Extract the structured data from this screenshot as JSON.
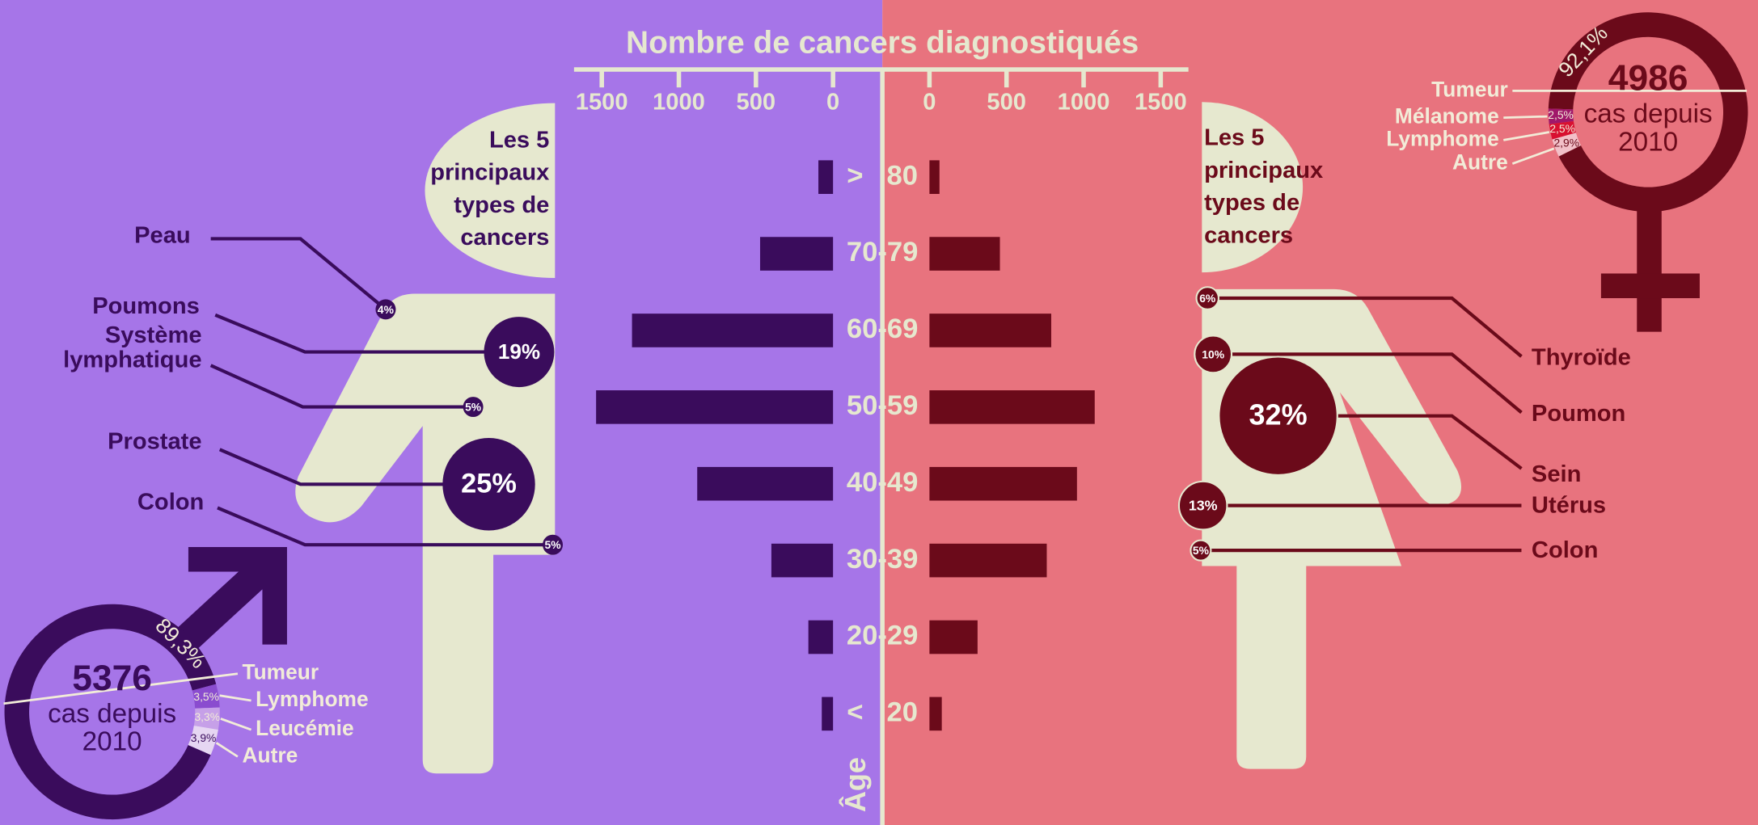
{
  "chart_data": [
    {
      "type": "butterfly",
      "title": "Nombre de cancers diagnostiqués",
      "y_label": "Âge",
      "categories": [
        "> 80",
        "70-79",
        "60-69",
        "50-59",
        "40-49",
        "30-39",
        "20-29",
        "< 20"
      ],
      "series": [
        {
          "color": "#3a0c5c",
          "values": [
            95,
            473,
            1304,
            1537,
            881,
            400,
            160,
            73
          ]
        },
        {
          "color": "#6b0a1a",
          "values": [
            65,
            457,
            790,
            1072,
            957,
            761,
            312,
            80
          ]
        }
      ],
      "xlim": [
        0,
        1680
      ],
      "xticks": [
        0,
        500,
        1000,
        1500
      ]
    },
    {
      "type": "bubble",
      "title": [
        "Les 5",
        "principaux",
        "types de",
        "cancers"
      ],
      "categories": [
        "Peau",
        "Poumons",
        "Système lymphatique",
        "Prostate",
        "Colon"
      ],
      "values": [
        4,
        19,
        5,
        25,
        5
      ],
      "value_labels": [
        "4%",
        "19%",
        "5%",
        "25%",
        "5%"
      ],
      "color": "#3a0c5c"
    },
    {
      "type": "bubble",
      "title": [
        "Les 5",
        "principaux",
        "types de",
        "cancers"
      ],
      "categories": [
        "Thyroïde",
        "Poumon",
        "Sein",
        "Utérus",
        "Colon"
      ],
      "values": [
        6,
        10,
        32,
        13,
        5
      ],
      "value_labels": [
        "6%",
        "10%",
        "32%",
        "13%",
        "5%"
      ],
      "color": "#6b0a1a"
    },
    {
      "type": "donut",
      "total": 5376,
      "caption": [
        "cas depuis",
        "2010"
      ],
      "categories": [
        "Tumeur",
        "Lymphome",
        "Leucémie",
        "Autre"
      ],
      "values": [
        89.3,
        3.5,
        3.3,
        3.9
      ],
      "value_labels": [
        "89,3%",
        "3,5%",
        "3,3%",
        "3,9%"
      ],
      "colors": [
        "#3a0c5c",
        "#8a4ccf",
        "#c6a0e8",
        "#e6d6f2"
      ]
    },
    {
      "type": "donut",
      "total": 4986,
      "caption": [
        "cas depuis",
        "2010"
      ],
      "categories": [
        "Tumeur",
        "Mélanome",
        "Lymphome",
        "Autre"
      ],
      "values": [
        92.1,
        2.5,
        2.5,
        2.9
      ],
      "value_labels": [
        "92,1%",
        "2,5%",
        "2,5%",
        "2,9%"
      ],
      "colors": [
        "#6b0a1a",
        "#a0186a",
        "#d81030",
        "#f2c0c8"
      ]
    }
  ]
}
